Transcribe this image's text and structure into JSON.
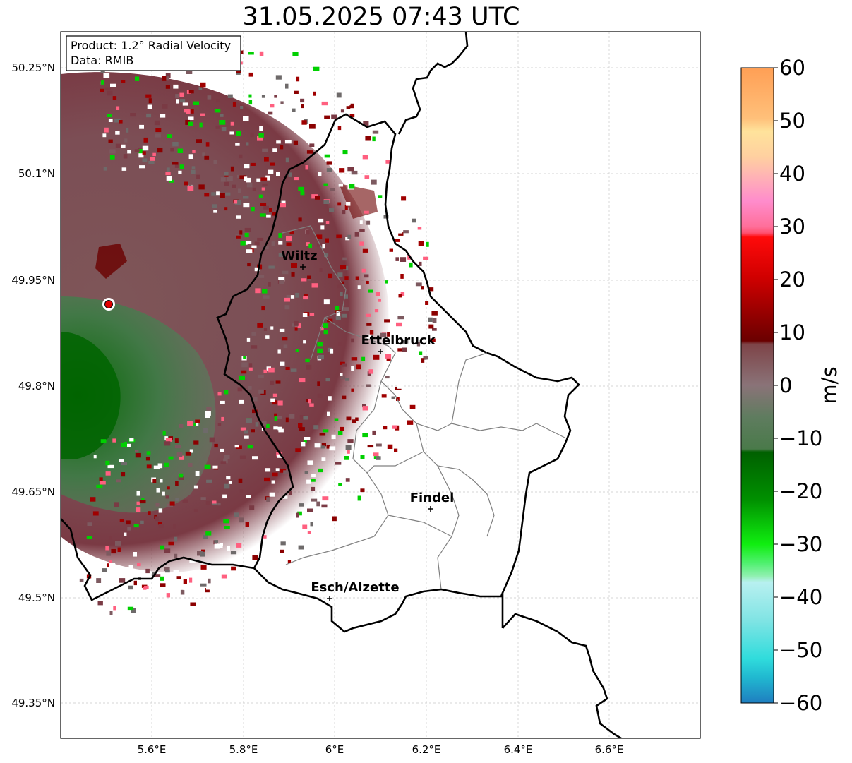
{
  "title": "31.05.2025 07:43 UTC",
  "info": {
    "product": "Product: 1.2° Radial Velocity",
    "data": "Data: RMIB"
  },
  "axes": {
    "x_ticks": [
      "5.6°E",
      "5.8°E",
      "6°E",
      "6.2°E",
      "6.4°E",
      "6.6°E"
    ],
    "y_ticks": [
      "50.25°N",
      "50.1°N",
      "49.95°N",
      "49.8°N",
      "49.65°N",
      "49.5°N",
      "49.35°N"
    ]
  },
  "cities": [
    {
      "name": "Wiltz"
    },
    {
      "name": "Ettelbruck"
    },
    {
      "name": "Findel"
    },
    {
      "name": "Esch/Alzette"
    }
  ],
  "colorbar": {
    "unit": "m/s",
    "ticks": [
      "60",
      "50",
      "40",
      "30",
      "20",
      "10",
      "0",
      "−10",
      "−20",
      "−30",
      "−40",
      "−50",
      "−60"
    ],
    "range": [
      -60,
      60
    ]
  },
  "colors": {
    "outbound_dark": "#7a3a40",
    "outbound_strong": "#8b0000",
    "inbound": "#006400",
    "inbound_bright": "#00e000",
    "neutral": "#7d6a6e",
    "radar_site": "#e00000"
  }
}
